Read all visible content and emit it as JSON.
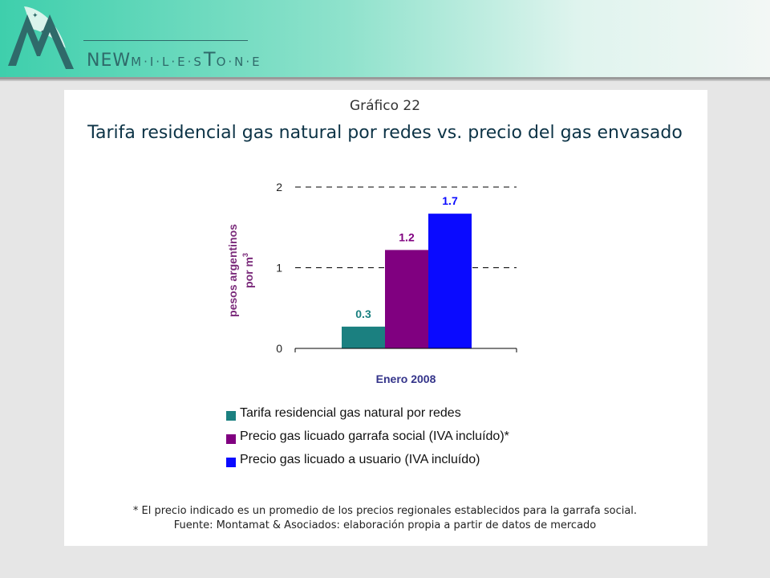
{
  "brand": {
    "name_part1": "NEW",
    "name_part2": "M·I·L·E·S",
    "name_part3": "T",
    "name_part4": "O·N·E"
  },
  "slide": {
    "subtitle": "Gráfico 22",
    "title": "Tarifa residencial gas natural por redes vs. precio del gas envasado",
    "footnote": "* El precio indicado es un promedio de los precios regionales establecidos para la garrafa social.",
    "source": "Fuente: Montamat & Asociados: elaboración propia a partir de datos de mercado"
  },
  "chart_data": {
    "type": "bar",
    "title": "Tarifa residencial gas natural por redes vs. precio del gas envasado",
    "categories": [
      "Enero 2008"
    ],
    "xlabel": "Enero 2008",
    "ylabel": "pesos argentinos",
    "ylabel_line2": "por m",
    "ylabel_sup": "3",
    "ylim": [
      0,
      2
    ],
    "yticks": [
      0,
      1,
      2
    ],
    "grid": "dashed horizontal at 1 and 2",
    "legend_position": "bottom",
    "series": [
      {
        "name": "Tarifa residencial gas natural por redes",
        "values": [
          0.27
        ],
        "label": "0.3",
        "color": "#1b8080"
      },
      {
        "name": "Precio gas licuado garrafa social (IVA incluído)*",
        "values": [
          1.22
        ],
        "label": "1.2",
        "color": "#800080"
      },
      {
        "name": "Precio gas licuado a usuario (IVA incluído)",
        "values": [
          1.67
        ],
        "label": "1.7",
        "color": "#0a0aff"
      }
    ]
  }
}
